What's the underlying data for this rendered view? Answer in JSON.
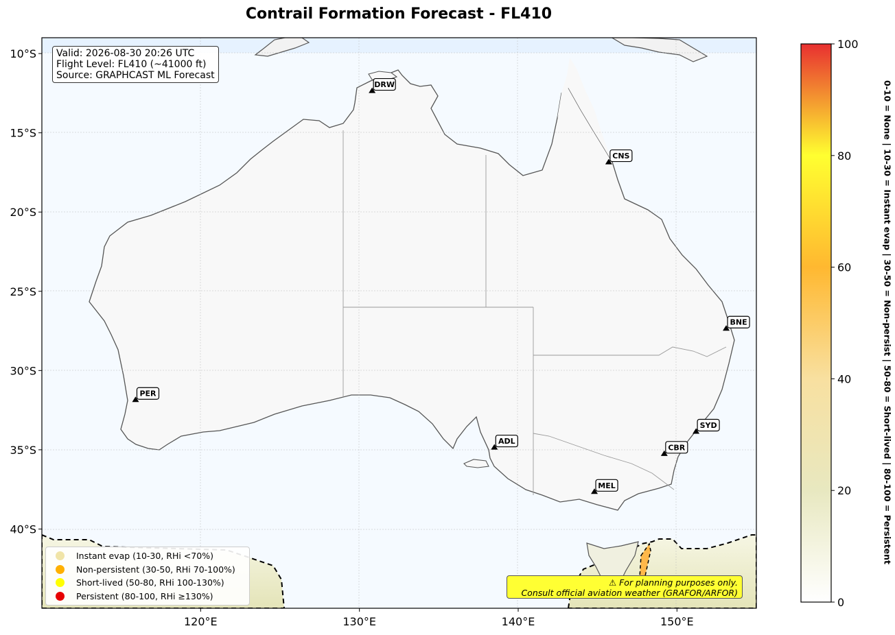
{
  "title": "Contrail Formation Forecast - FL410",
  "info_box": {
    "valid": "Valid: 2026-08-30 20:26 UTC",
    "flight_level": "Flight Level: FL410 (~41000 ft)",
    "source": "Source: GRAPHCAST ML Forecast"
  },
  "map": {
    "extent": {
      "lon": [
        110,
        155
      ],
      "lat": [
        -45,
        -9
      ]
    },
    "lon_ticks": [
      {
        "value": 120,
        "label": "120°E"
      },
      {
        "value": 130,
        "label": "130°E"
      },
      {
        "value": 140,
        "label": "140°E"
      },
      {
        "value": 150,
        "label": "150°E"
      }
    ],
    "lat_ticks": [
      {
        "value": -10,
        "label": "10°S"
      },
      {
        "value": -15,
        "label": "15°S"
      },
      {
        "value": -20,
        "label": "20°S"
      },
      {
        "value": -25,
        "label": "25°S"
      },
      {
        "value": -30,
        "label": "30°S"
      },
      {
        "value": -35,
        "label": "35°S"
      },
      {
        "value": -40,
        "label": "40°S"
      }
    ],
    "airports": [
      {
        "code": "DRW",
        "lon": 130.8,
        "lat": -12.4
      },
      {
        "code": "CNS",
        "lon": 145.7,
        "lat": -16.9
      },
      {
        "code": "BNE",
        "lon": 153.1,
        "lat": -27.4
      },
      {
        "code": "PER",
        "lon": 115.9,
        "lat": -31.9
      },
      {
        "code": "ADL",
        "lon": 138.5,
        "lat": -34.9
      },
      {
        "code": "SYD",
        "lon": 151.2,
        "lat": -33.9
      },
      {
        "code": "CBR",
        "lon": 149.2,
        "lat": -35.3
      },
      {
        "code": "MEL",
        "lon": 144.8,
        "lat": -37.7
      }
    ],
    "land_color": "#f8f8f8",
    "ocean_color": "#f5faff",
    "coast_color": "#555555"
  },
  "legend": {
    "items": [
      {
        "label": "Instant evap (10-30, RHi <70%)",
        "color": "#f0e4a8"
      },
      {
        "label": "Non-persistent (30-50, RHi 70-100%)",
        "color": "#ffb000"
      },
      {
        "label": "Short-lived (50-80, RHi 100-130%)",
        "color": "#ffff00"
      },
      {
        "label": "Persistent (80-100, RHi ≥130%)",
        "color": "#e60000"
      }
    ]
  },
  "disclaimer": {
    "line1": "⚠ For planning purposes only.",
    "line2": "Consult official aviation weather (GRAFOR/ARFOR)"
  },
  "colorbar": {
    "min": 0,
    "max": 100,
    "ticks": [
      "0",
      "20",
      "40",
      "60",
      "80",
      "100"
    ],
    "stops": [
      "#ffffff",
      "#e8e8c0",
      "#f8e0a0",
      "#ffb830",
      "#ffff30",
      "#e83030"
    ],
    "side_label": "0-10 = None  |  10-30 = Instant evap  |  30-50 = Non-persist  |  50-80 = Short-lived  |  80-100 = Persistent"
  }
}
